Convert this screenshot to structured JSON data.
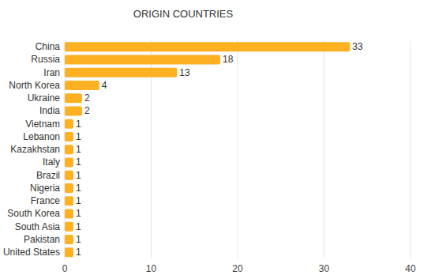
{
  "chart_data": {
    "type": "bar",
    "title": "ORIGIN COUNTRIES",
    "orientation": "horizontal",
    "categories": [
      "China",
      "Russia",
      "Iran",
      "North Korea",
      "Ukraine",
      "India",
      "Vietnam",
      "Lebanon",
      "Kazakhstan",
      "Italy",
      "Brazil",
      "Nigeria",
      "France",
      "South Korea",
      "South Asia",
      "Pakistan",
      "United States"
    ],
    "values": [
      33,
      18,
      13,
      4,
      2,
      2,
      1,
      1,
      1,
      1,
      1,
      1,
      1,
      1,
      1,
      1,
      1
    ],
    "color": "#fdb022",
    "xlim": [
      0,
      40
    ],
    "xticks": [
      0,
      10,
      20,
      30,
      40
    ],
    "grid": true,
    "data_labels": true
  }
}
